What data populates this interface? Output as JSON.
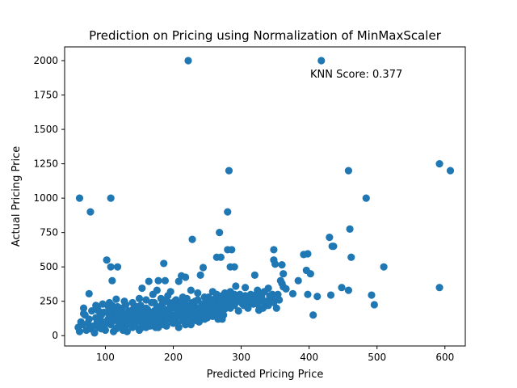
{
  "chart_data": {
    "type": "scatter",
    "title": "Prediction on Pricing using Normalization of MinMaxScaler",
    "xlabel": "Predicted Pricing Price",
    "ylabel": "Actual Pricing Price",
    "annotation": "KNN Score: 0.377",
    "xlim": [
      40,
      630
    ],
    "ylim": [
      -75,
      2100
    ],
    "xticks": [
      100,
      200,
      300,
      400,
      500,
      600
    ],
    "yticks": [
      0,
      250,
      500,
      750,
      1000,
      1250,
      1500,
      1750,
      2000
    ],
    "grid": false,
    "legend": "none",
    "marker_color": "#1f77b4",
    "points": [
      [
        222,
        2000
      ],
      [
        418,
        2000
      ],
      [
        592,
        1250
      ],
      [
        608,
        1200
      ],
      [
        458,
        1200
      ],
      [
        282,
        1200
      ],
      [
        62,
        1000
      ],
      [
        108,
        1000
      ],
      [
        484,
        1000
      ],
      [
        78,
        900
      ],
      [
        280,
        900
      ],
      [
        460,
        775
      ],
      [
        268,
        750
      ],
      [
        430,
        715
      ],
      [
        228,
        700
      ],
      [
        434,
        650
      ],
      [
        436,
        650
      ],
      [
        280,
        625
      ],
      [
        286,
        625
      ],
      [
        348,
        625
      ],
      [
        392,
        590
      ],
      [
        398,
        595
      ],
      [
        462,
        570
      ],
      [
        264,
        570
      ],
      [
        270,
        570
      ],
      [
        102,
        550
      ],
      [
        348,
        550
      ],
      [
        350,
        520
      ],
      [
        186,
        525
      ],
      [
        360,
        515
      ],
      [
        108,
        500
      ],
      [
        118,
        500
      ],
      [
        284,
        500
      ],
      [
        290,
        500
      ],
      [
        244,
        495
      ],
      [
        510,
        500
      ],
      [
        396,
        475
      ],
      [
        362,
        450
      ],
      [
        402,
        450
      ],
      [
        212,
        435
      ],
      [
        218,
        425
      ],
      [
        320,
        440
      ],
      [
        240,
        440
      ],
      [
        110,
        400
      ],
      [
        164,
        395
      ],
      [
        178,
        400
      ],
      [
        188,
        400
      ],
      [
        208,
        395
      ],
      [
        358,
        400
      ],
      [
        360,
        380
      ],
      [
        384,
        400
      ],
      [
        362,
        355
      ],
      [
        366,
        340
      ],
      [
        448,
        350
      ],
      [
        458,
        330
      ],
      [
        592,
        350
      ],
      [
        292,
        360
      ],
      [
        306,
        350
      ],
      [
        324,
        330
      ],
      [
        334,
        320
      ],
      [
        340,
        345
      ],
      [
        376,
        305
      ],
      [
        398,
        300
      ],
      [
        412,
        285
      ],
      [
        432,
        295
      ],
      [
        492,
        295
      ],
      [
        496,
        225
      ],
      [
        406,
        150
      ],
      [
        76,
        305
      ],
      [
        68,
        200
      ],
      [
        88,
        205
      ],
      [
        104,
        215
      ],
      [
        118,
        210
      ],
      [
        130,
        225
      ],
      [
        146,
        210
      ],
      [
        154,
        345
      ],
      [
        176,
        330
      ],
      [
        196,
        320
      ],
      [
        226,
        330
      ],
      [
        258,
        320
      ],
      [
        276,
        310
      ],
      [
        290,
        300
      ],
      [
        316,
        280
      ],
      [
        330,
        270
      ],
      [
        346,
        270
      ],
      [
        352,
        200
      ],
      [
        338,
        220
      ],
      [
        318,
        230
      ],
      [
        302,
        230
      ],
      [
        290,
        220
      ],
      [
        276,
        195
      ],
      [
        272,
        120
      ],
      [
        296,
        180
      ],
      [
        326,
        185
      ],
      [
        334,
        240
      ],
      [
        346,
        300
      ],
      [
        256,
        260
      ],
      [
        246,
        280
      ],
      [
        236,
        310
      ],
      [
        214,
        280
      ],
      [
        204,
        260
      ],
      [
        192,
        290
      ],
      [
        182,
        270
      ],
      [
        170,
        300
      ],
      [
        160,
        260
      ],
      [
        150,
        270
      ],
      [
        140,
        240
      ],
      [
        128,
        250
      ],
      [
        116,
        265
      ],
      [
        106,
        240
      ],
      [
        96,
        230
      ],
      [
        86,
        220
      ],
      [
        80,
        180
      ],
      [
        70,
        150
      ],
      [
        64,
        100
      ],
      [
        60,
        60
      ],
      [
        62,
        30
      ],
      [
        66,
        80
      ],
      [
        72,
        40
      ],
      [
        76,
        120
      ],
      [
        82,
        70
      ],
      [
        84,
        20
      ],
      [
        90,
        60
      ],
      [
        92,
        140
      ],
      [
        96,
        100
      ],
      [
        98,
        170
      ],
      [
        100,
        40
      ],
      [
        104,
        120
      ],
      [
        108,
        80
      ],
      [
        110,
        160
      ],
      [
        112,
        30
      ],
      [
        114,
        190
      ],
      [
        118,
        60
      ],
      [
        120,
        130
      ],
      [
        122,
        100
      ],
      [
        124,
        200
      ],
      [
        126,
        40
      ],
      [
        130,
        150
      ],
      [
        132,
        80
      ],
      [
        134,
        180
      ],
      [
        136,
        120
      ],
      [
        140,
        60
      ],
      [
        142,
        200
      ],
      [
        144,
        100
      ],
      [
        146,
        140
      ],
      [
        148,
        170
      ],
      [
        150,
        40
      ],
      [
        152,
        220
      ],
      [
        154,
        90
      ],
      [
        156,
        130
      ],
      [
        158,
        160
      ],
      [
        160,
        60
      ],
      [
        162,
        190
      ],
      [
        164,
        110
      ],
      [
        166,
        150
      ],
      [
        168,
        240
      ],
      [
        170,
        80
      ],
      [
        172,
        180
      ],
      [
        174,
        130
      ],
      [
        176,
        210
      ],
      [
        178,
        60
      ],
      [
        180,
        160
      ],
      [
        182,
        100
      ],
      [
        184,
        230
      ],
      [
        186,
        140
      ],
      [
        188,
        190
      ],
      [
        190,
        70
      ],
      [
        192,
        170
      ],
      [
        194,
        120
      ],
      [
        196,
        220
      ],
      [
        198,
        150
      ],
      [
        200,
        90
      ],
      [
        202,
        250
      ],
      [
        204,
        130
      ],
      [
        206,
        180
      ],
      [
        208,
        60
      ],
      [
        210,
        200
      ],
      [
        212,
        140
      ],
      [
        214,
        230
      ],
      [
        216,
        100
      ],
      [
        218,
        170
      ],
      [
        220,
        270
      ],
      [
        222,
        130
      ],
      [
        224,
        200
      ],
      [
        226,
        80
      ],
      [
        228,
        240
      ],
      [
        230,
        160
      ],
      [
        232,
        210
      ],
      [
        234,
        110
      ],
      [
        236,
        260
      ],
      [
        238,
        180
      ],
      [
        240,
        140
      ],
      [
        242,
        230
      ],
      [
        244,
        190
      ],
      [
        246,
        120
      ],
      [
        248,
        250
      ],
      [
        250,
        170
      ],
      [
        252,
        220
      ],
      [
        254,
        150
      ],
      [
        256,
        200
      ],
      [
        258,
        240
      ],
      [
        260,
        180
      ],
      [
        262,
        270
      ],
      [
        264,
        210
      ],
      [
        266,
        160
      ],
      [
        268,
        250
      ],
      [
        270,
        230
      ],
      [
        272,
        290
      ],
      [
        274,
        200
      ],
      [
        276,
        260
      ],
      [
        278,
        220
      ],
      [
        280,
        280
      ],
      [
        282,
        240
      ],
      [
        284,
        200
      ],
      [
        286,
        270
      ],
      [
        288,
        230
      ],
      [
        292,
        260
      ],
      [
        296,
        250
      ],
      [
        300,
        270
      ],
      [
        304,
        220
      ],
      [
        308,
        260
      ],
      [
        312,
        240
      ],
      [
        316,
        250
      ],
      [
        320,
        270
      ],
      [
        324,
        230
      ],
      [
        328,
        260
      ],
      [
        332,
        200
      ],
      [
        336,
        250
      ],
      [
        340,
        220
      ],
      [
        344,
        260
      ],
      [
        348,
        240
      ],
      [
        354,
        300
      ],
      [
        356,
        260
      ],
      [
        88,
        100
      ],
      [
        94,
        50
      ],
      [
        102,
        90
      ],
      [
        106,
        150
      ],
      [
        112,
        110
      ],
      [
        116,
        50
      ],
      [
        120,
        170
      ],
      [
        124,
        70
      ],
      [
        128,
        110
      ],
      [
        132,
        30
      ],
      [
        138,
        90
      ],
      [
        140,
        150
      ],
      [
        144,
        70
      ],
      [
        150,
        110
      ],
      [
        154,
        60
      ],
      [
        158,
        100
      ],
      [
        162,
        140
      ],
      [
        166,
        70
      ],
      [
        170,
        120
      ],
      [
        174,
        60
      ],
      [
        178,
        100
      ],
      [
        182,
        150
      ],
      [
        186,
        80
      ],
      [
        190,
        120
      ],
      [
        194,
        170
      ],
      [
        198,
        100
      ],
      [
        202,
        140
      ],
      [
        206,
        90
      ],
      [
        210,
        160
      ],
      [
        214,
        120
      ],
      [
        218,
        80
      ],
      [
        222,
        170
      ],
      [
        226,
        110
      ],
      [
        230,
        190
      ],
      [
        234,
        130
      ],
      [
        238,
        100
      ],
      [
        242,
        160
      ],
      [
        246,
        210
      ],
      [
        250,
        130
      ],
      [
        254,
        180
      ],
      [
        258,
        140
      ],
      [
        262,
        190
      ],
      [
        266,
        120
      ],
      [
        270,
        170
      ],
      [
        274,
        150
      ],
      [
        68,
        160
      ],
      [
        74,
        90
      ],
      [
        78,
        50
      ],
      [
        86,
        130
      ],
      [
        90,
        180
      ],
      [
        94,
        150
      ],
      [
        98,
        70
      ],
      [
        106,
        190
      ],
      [
        110,
        220
      ],
      [
        116,
        130
      ],
      [
        120,
        80
      ],
      [
        126,
        160
      ],
      [
        134,
        130
      ],
      [
        138,
        180
      ],
      [
        146,
        190
      ],
      [
        152,
        160
      ],
      [
        156,
        190
      ],
      [
        160,
        200
      ],
      [
        168,
        160
      ],
      [
        172,
        240
      ],
      [
        176,
        170
      ],
      [
        184,
        200
      ],
      [
        188,
        250
      ],
      [
        194,
        240
      ],
      [
        198,
        200
      ],
      [
        204,
        210
      ],
      [
        210,
        240
      ],
      [
        216,
        190
      ],
      [
        220,
        220
      ],
      [
        224,
        160
      ],
      [
        232,
        250
      ],
      [
        240,
        200
      ],
      [
        248,
        190
      ],
      [
        252,
        280
      ],
      [
        260,
        220
      ],
      [
        264,
        300
      ],
      [
        268,
        190
      ],
      [
        278,
        300
      ],
      [
        284,
        320
      ],
      [
        294,
        280
      ],
      [
        298,
        300
      ],
      [
        306,
        290
      ],
      [
        310,
        200
      ],
      [
        314,
        300
      ],
      [
        322,
        300
      ],
      [
        330,
        290
      ],
      [
        342,
        290
      ]
    ]
  }
}
